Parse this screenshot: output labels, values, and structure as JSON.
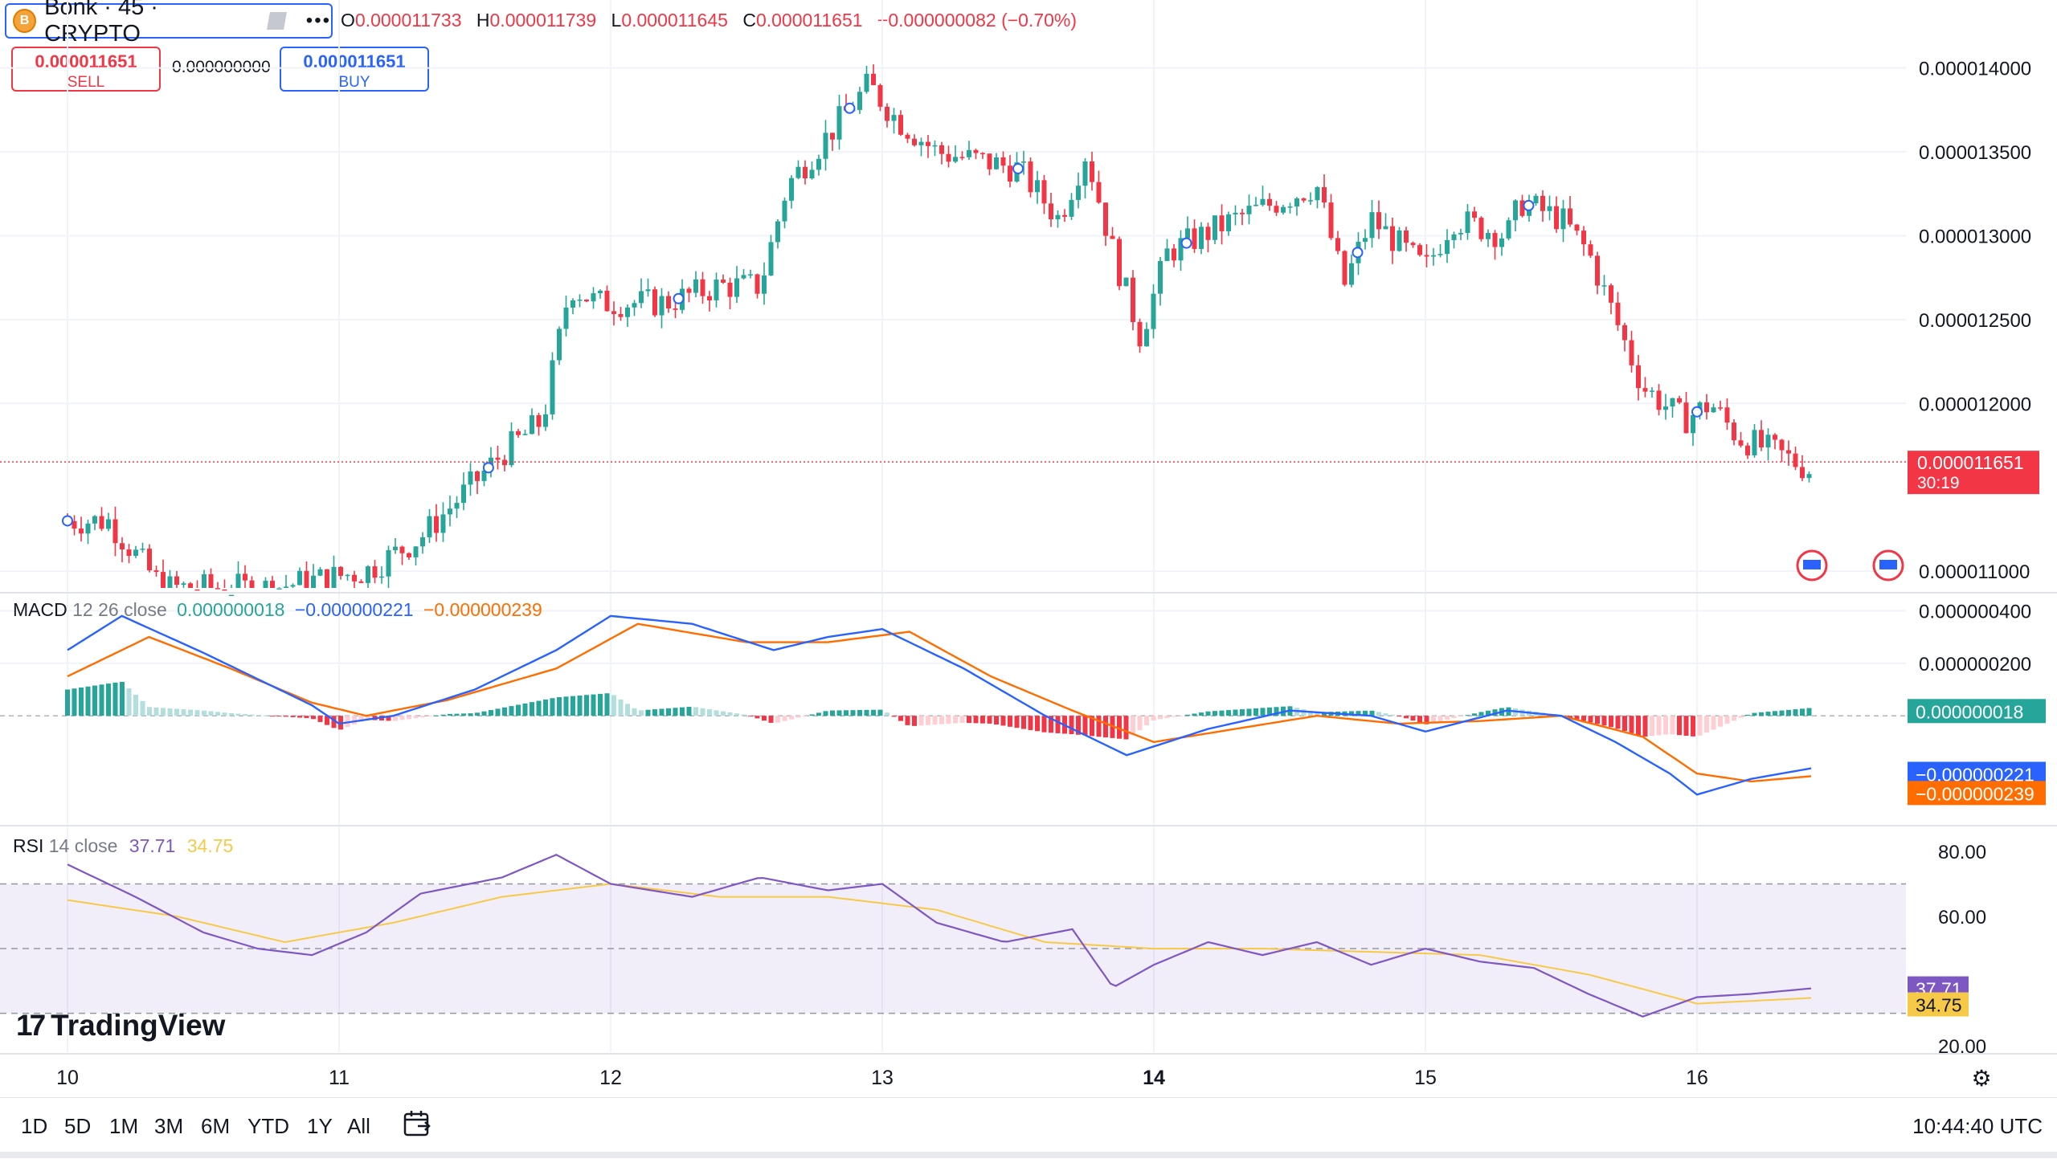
{
  "header": {
    "symbol_title": "Bonk · 45 · CRYPTO",
    "coin_glyph": "B",
    "more_glyph": "•••",
    "ohlc": {
      "o_label": "O",
      "o": "0.000011733",
      "h_label": "H",
      "h": "0.000011739",
      "l_label": "L",
      "l": "0.000011645",
      "c_label": "C",
      "c": "0.000011651",
      "change": "−0.000000082 (−0.70%)"
    }
  },
  "trade": {
    "sell_price": "0.000011651",
    "sell_label": "SELL",
    "spread": "0.000000000",
    "buy_price": "0.000011651",
    "buy_label": "BUY"
  },
  "colors": {
    "up": "#26a69a",
    "down": "#f23645",
    "macd": "#2962ff",
    "signal": "#ff6d00",
    "rsi": "#7e57c2",
    "rsi_ma": "#f7c948"
  },
  "chart_data": [
    {
      "type": "candlestick",
      "title": "Bonk · 45 · CRYPTO",
      "ylim": [
        1.09e-05,
        1.43e-05
      ],
      "yticks": [
        "0.000014000",
        "0.000013500",
        "0.000013000",
        "0.000012500",
        "0.000012000",
        "0.000011000"
      ],
      "y_values": [
        1.4e-05,
        1.35e-05,
        1.3e-05,
        1.25e-05,
        1.2e-05,
        1.1e-05
      ],
      "x_labels": [
        "10",
        "11",
        "12",
        "13",
        "14",
        "15",
        "16"
      ],
      "last_price": "0.000011651",
      "last_price_value": 1.1651e-05,
      "countdown": "30:19",
      "path": [
        [
          0.0,
          1.13e-05
        ],
        [
          0.15,
          1.13e-05
        ],
        [
          0.35,
          1.09e-05
        ],
        [
          0.55,
          1.09e-05
        ],
        [
          0.75,
          1.09e-05
        ],
        [
          1.1,
          1.1e-05
        ],
        [
          1.3,
          1.12e-05
        ],
        [
          1.6,
          1.17e-05
        ],
        [
          1.75,
          1.19e-05
        ],
        [
          1.85,
          1.27e-05
        ],
        [
          1.95,
          1.26e-05
        ],
        [
          2.2,
          1.26e-05
        ],
        [
          2.4,
          1.27e-05
        ],
        [
          2.55,
          1.27e-05
        ],
        [
          2.65,
          1.33e-05
        ],
        [
          2.85,
          1.37e-05
        ],
        [
          2.95,
          1.39e-05
        ],
        [
          3.0,
          1.38e-05
        ],
        [
          3.05,
          1.37e-05
        ],
        [
          3.2,
          1.35e-05
        ],
        [
          3.5,
          1.34e-05
        ],
        [
          3.65,
          1.31e-05
        ],
        [
          3.75,
          1.35e-05
        ],
        [
          3.85,
          1.29e-05
        ],
        [
          3.95,
          1.24e-05
        ],
        [
          4.05,
          1.29e-05
        ],
        [
          4.3,
          1.31e-05
        ],
        [
          4.6,
          1.33e-05
        ],
        [
          4.65,
          1.3e-05
        ],
        [
          4.7,
          1.27e-05
        ],
        [
          4.8,
          1.31e-05
        ],
        [
          5.0,
          1.28e-05
        ],
        [
          5.1,
          1.31e-05
        ],
        [
          5.3,
          1.3e-05
        ],
        [
          5.35,
          1.32e-05
        ],
        [
          5.5,
          1.31e-05
        ],
        [
          5.6,
          1.29e-05
        ],
        [
          5.7,
          1.25e-05
        ],
        [
          5.8,
          1.21e-05
        ],
        [
          5.95,
          1.19e-05
        ],
        [
          6.05,
          1.2e-05
        ],
        [
          6.15,
          1.18e-05
        ],
        [
          6.3,
          1.17e-05
        ],
        [
          6.42,
          1.16e-05
        ]
      ],
      "dividend_markers": [
        0.0,
        1.55,
        2.25,
        2.88,
        3.5,
        4.12,
        4.75,
        5.38,
        6.0
      ]
    },
    {
      "type": "line",
      "title": "MACD",
      "params": "12 26 close",
      "histogram": "0.000000018",
      "macd": "−0.000000221",
      "signal": "−0.000000239",
      "histogram_value": 1.8e-08,
      "macd_value": -2.21e-07,
      "signal_value": -2.39e-07,
      "ylim": [
        -4e-07,
        4.5e-07
      ],
      "yticks": [
        "0.000000400",
        "0.000000200"
      ],
      "y_values": [
        4e-07,
        2e-07
      ],
      "macd_path": [
        [
          0.0,
          2.5e-07
        ],
        [
          0.2,
          3.8e-07
        ],
        [
          0.5,
          2.4e-07
        ],
        [
          0.9,
          4e-08
        ],
        [
          1.0,
          -3e-08
        ],
        [
          1.2,
          0.0
        ],
        [
          1.5,
          1e-07
        ],
        [
          1.8,
          2.5e-07
        ],
        [
          2.0,
          3.8e-07
        ],
        [
          2.3,
          3.5e-07
        ],
        [
          2.6,
          2.5e-07
        ],
        [
          2.8,
          3e-07
        ],
        [
          3.0,
          3.3e-07
        ],
        [
          3.3,
          1.8e-07
        ],
        [
          3.6,
          0.0
        ],
        [
          3.9,
          -1.5e-07
        ],
        [
          4.2,
          -5e-08
        ],
        [
          4.5,
          2e-08
        ],
        [
          4.8,
          0.0
        ],
        [
          5.0,
          -6e-08
        ],
        [
          5.3,
          2e-08
        ],
        [
          5.5,
          0.0
        ],
        [
          5.7,
          -1e-07
        ],
        [
          5.9,
          -2.2e-07
        ],
        [
          6.0,
          -3e-07
        ],
        [
          6.2,
          -2.4e-07
        ],
        [
          6.42,
          -2e-07
        ]
      ],
      "signal_path": [
        [
          0.0,
          1.5e-07
        ],
        [
          0.3,
          3e-07
        ],
        [
          0.6,
          1.8e-07
        ],
        [
          0.9,
          5e-08
        ],
        [
          1.1,
          0.0
        ],
        [
          1.4,
          6e-08
        ],
        [
          1.8,
          1.8e-07
        ],
        [
          2.1,
          3.5e-07
        ],
        [
          2.5,
          2.8e-07
        ],
        [
          2.8,
          2.8e-07
        ],
        [
          3.1,
          3.2e-07
        ],
        [
          3.4,
          1.5e-07
        ],
        [
          3.7,
          2e-08
        ],
        [
          4.0,
          -1e-07
        ],
        [
          4.3,
          -5e-08
        ],
        [
          4.6,
          0.0
        ],
        [
          4.9,
          -3e-08
        ],
        [
          5.2,
          -2e-08
        ],
        [
          5.5,
          0.0
        ],
        [
          5.8,
          -8e-08
        ],
        [
          6.0,
          -2.2e-07
        ],
        [
          6.2,
          -2.5e-07
        ],
        [
          6.42,
          -2.3e-07
        ]
      ]
    },
    {
      "type": "line",
      "title": "RSI",
      "params": "14 close",
      "rsi": "37.71",
      "rsi_ma": "34.75",
      "rsi_value": 37.71,
      "rsi_ma_value": 34.75,
      "ylim": [
        18,
        86
      ],
      "yticks": [
        "80.00",
        "60.00",
        "20.00"
      ],
      "y_values": [
        80,
        60,
        20
      ],
      "band": [
        30,
        70
      ],
      "rsi_path": [
        [
          0.0,
          76
        ],
        [
          0.25,
          66
        ],
        [
          0.5,
          55
        ],
        [
          0.7,
          50
        ],
        [
          0.9,
          48
        ],
        [
          1.1,
          55
        ],
        [
          1.3,
          67
        ],
        [
          1.6,
          72
        ],
        [
          1.8,
          79
        ],
        [
          2.0,
          70
        ],
        [
          2.3,
          66
        ],
        [
          2.55,
          72
        ],
        [
          2.8,
          68
        ],
        [
          3.0,
          70
        ],
        [
          3.2,
          58
        ],
        [
          3.45,
          52
        ],
        [
          3.7,
          56
        ],
        [
          3.85,
          38
        ],
        [
          4.0,
          45
        ],
        [
          4.2,
          52
        ],
        [
          4.4,
          48
        ],
        [
          4.6,
          52
        ],
        [
          4.8,
          45
        ],
        [
          5.0,
          50
        ],
        [
          5.2,
          46
        ],
        [
          5.4,
          44
        ],
        [
          5.6,
          36
        ],
        [
          5.8,
          29
        ],
        [
          6.0,
          35
        ],
        [
          6.2,
          36
        ],
        [
          6.42,
          37.71
        ]
      ],
      "rsi_ma_path": [
        [
          0.0,
          65
        ],
        [
          0.4,
          60
        ],
        [
          0.8,
          52
        ],
        [
          1.2,
          58
        ],
        [
          1.6,
          66
        ],
        [
          2.0,
          70
        ],
        [
          2.4,
          66
        ],
        [
          2.8,
          66
        ],
        [
          3.2,
          62
        ],
        [
          3.6,
          52
        ],
        [
          4.0,
          50
        ],
        [
          4.4,
          50
        ],
        [
          4.8,
          49
        ],
        [
          5.2,
          48
        ],
        [
          5.6,
          42
        ],
        [
          6.0,
          33
        ],
        [
          6.42,
          34.75
        ]
      ]
    }
  ],
  "time_axis": {
    "bold_label": "14",
    "gear_glyph": "⚙"
  },
  "ranges": [
    "1D",
    "5D",
    "1M",
    "3M",
    "6M",
    "YTD",
    "1Y",
    "All"
  ],
  "goto_icon": "calendar-arrow-icon",
  "clock": "10:44:40 UTC",
  "brand": "TradingView"
}
